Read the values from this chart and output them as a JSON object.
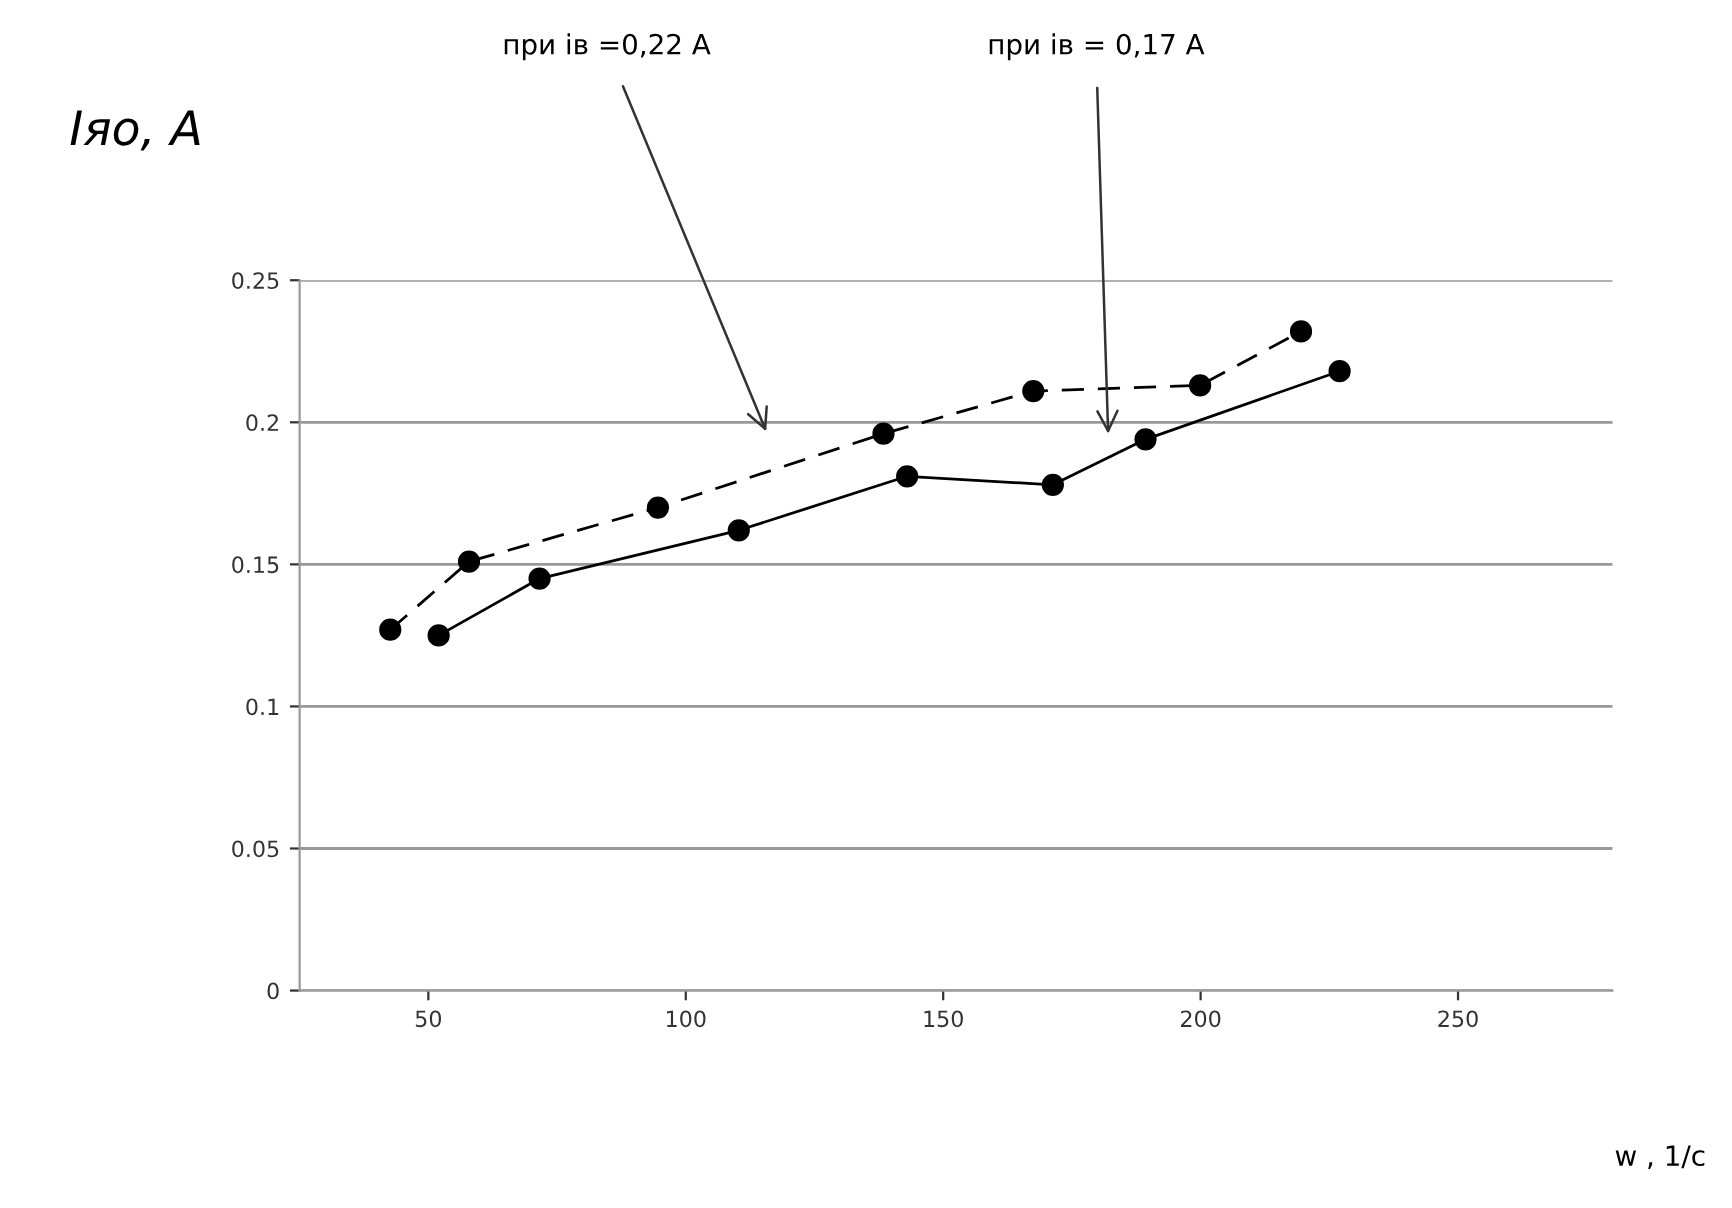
{
  "chart_data": {
    "type": "line",
    "xlabel": "w , 1/с",
    "ylabel": "Іяо, А",
    "series": [
      {
        "x": [
          42.6,
          57.9,
          94.6,
          138.4,
          167.5,
          199.9,
          219.5
        ],
        "values": [
          0.127,
          0.151,
          0.17,
          0.196,
          0.211,
          0.213,
          0.232
        ],
        "color": "#000000",
        "line_style": "dashed"
      },
      {
        "x": [
          52,
          71.6,
          110.3,
          143,
          171.3,
          189.3,
          227
        ],
        "values": [
          0.125,
          0.145,
          0.162,
          0.181,
          0.178,
          0.194,
          0.218
        ],
        "color": "#000000",
        "line_style": "solid"
      }
    ],
    "annotations": [
      "при ів =0,22 А",
      "при ів = 0,17 А"
    ],
    "marker": "circle",
    "grid": "y",
    "xlim": [
      25,
      280
    ],
    "xticks": [
      50,
      100,
      150,
      200,
      250
    ],
    "ylim": [
      0,
      0.25
    ],
    "yticks": [
      0,
      0.05,
      0.1,
      0.15,
      0.2,
      0.25
    ]
  }
}
